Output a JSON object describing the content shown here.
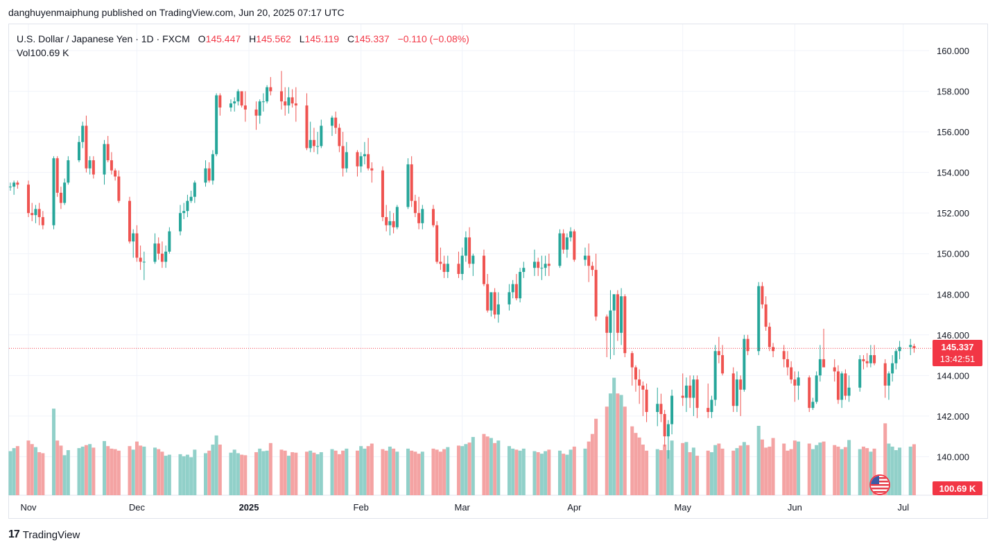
{
  "header": {
    "published_by": "danghuyenmaiphung published on TradingView.com, Jun 20, 2025 07:17 UTC"
  },
  "legend": {
    "symbol": "U.S. Dollar / Japanese Yen · 1D · FXCM",
    "open_label": "O",
    "open": "145.447",
    "high_label": "H",
    "high": "145.562",
    "low_label": "L",
    "low": "145.119",
    "close_label": "C",
    "close": "145.337",
    "change": "−0.110 (−0.08%)",
    "vol_label": "Vol",
    "vol": "100.69 K"
  },
  "price_tag": {
    "price": "145.337",
    "countdown": "13:42:51"
  },
  "vol_tag": "100.69 K",
  "footer": {
    "brand": "TradingView",
    "logo_mark": "17"
  },
  "colors": {
    "up": "#26a69a",
    "down": "#ef5350",
    "up_vol": "#91d0c9",
    "down_vol": "#f4a3a3",
    "accent": "#f23645"
  },
  "chart_data": {
    "type": "candlestick",
    "y_ticks": [
      "160.000",
      "158.000",
      "156.000",
      "154.000",
      "152.000",
      "150.000",
      "148.000",
      "146.000",
      "144.000",
      "142.000",
      "140.000"
    ],
    "ylim": [
      138.1,
      161.3
    ],
    "x_ticks": [
      {
        "label": "Nov",
        "day": 0
      },
      {
        "label": "Dec",
        "day": 30
      },
      {
        "label": "2025",
        "day": 61
      },
      {
        "label": "Feb",
        "day": 92
      },
      {
        "label": "Mar",
        "day": 120
      },
      {
        "label": "Apr",
        "day": 151
      },
      {
        "label": "May",
        "day": 181
      },
      {
        "label": "Jun",
        "day": 212
      },
      {
        "label": "Jul",
        "day": 242
      }
    ],
    "current_price": 145.337,
    "candles": [
      [
        -5,
        153.3,
        153.5,
        153.1,
        153.3,
        87
      ],
      [
        -4,
        153.3,
        153.6,
        152.9,
        153.5,
        93
      ],
      [
        -3,
        153.5,
        153.6,
        153.2,
        153.4,
        97
      ],
      [
        0,
        153.4,
        153.6,
        151.8,
        152.0,
        108
      ],
      [
        1,
        152.0,
        152.5,
        151.6,
        151.9,
        101
      ],
      [
        2,
        151.9,
        152.4,
        151.5,
        152.2,
        95
      ],
      [
        3,
        152.2,
        152.5,
        151.4,
        151.8,
        85
      ],
      [
        4,
        151.8,
        152.1,
        151.2,
        151.4,
        83
      ],
      [
        7,
        151.4,
        154.8,
        151.2,
        154.7,
        171
      ],
      [
        8,
        154.7,
        154.8,
        152.8,
        153.0,
        108
      ],
      [
        9,
        153.0,
        153.3,
        152.2,
        152.5,
        98
      ],
      [
        10,
        152.5,
        153.7,
        152.4,
        153.5,
        79
      ],
      [
        11,
        153.5,
        154.8,
        153.4,
        154.6,
        89
      ],
      [
        14,
        154.6,
        155.8,
        154.5,
        155.5,
        93
      ],
      [
        15,
        155.5,
        156.5,
        155.2,
        156.3,
        96
      ],
      [
        16,
        156.3,
        156.8,
        154.0,
        154.2,
        99
      ],
      [
        17,
        154.2,
        154.8,
        153.9,
        154.6,
        101
      ],
      [
        18,
        154.6,
        154.8,
        153.7,
        153.9,
        94
      ],
      [
        21,
        153.9,
        155.6,
        153.4,
        155.4,
        107
      ],
      [
        22,
        155.4,
        155.8,
        154.5,
        154.6,
        97
      ],
      [
        23,
        154.6,
        155.0,
        153.9,
        154.1,
        92
      ],
      [
        24,
        154.1,
        154.2,
        153.6,
        153.8,
        91
      ],
      [
        25,
        153.8,
        154.1,
        152.5,
        152.6,
        88
      ],
      [
        28,
        152.6,
        152.8,
        150.5,
        150.6,
        97
      ],
      [
        29,
        150.6,
        151.2,
        149.8,
        151.0,
        90
      ],
      [
        30,
        151.0,
        151.4,
        149.6,
        149.8,
        106
      ],
      [
        31,
        149.8,
        150.4,
        149.2,
        149.6,
        98
      ],
      [
        32,
        149.6,
        150.1,
        148.7,
        149.6,
        96
      ],
      [
        35,
        149.6,
        151.0,
        149.5,
        150.5,
        94
      ],
      [
        36,
        150.5,
        150.8,
        149.7,
        150.0,
        91
      ],
      [
        37,
        150.0,
        150.6,
        149.3,
        149.6,
        86
      ],
      [
        38,
        149.6,
        150.4,
        149.3,
        150.1,
        78
      ],
      [
        39,
        150.1,
        151.3,
        150.0,
        151.1,
        80
      ],
      [
        42,
        151.1,
        152.4,
        150.9,
        152.0,
        81
      ],
      [
        43,
        152.0,
        152.5,
        151.7,
        152.1,
        77
      ],
      [
        44,
        152.1,
        152.9,
        151.8,
        152.6,
        80
      ],
      [
        45,
        152.6,
        153.1,
        152.5,
        152.8,
        75
      ],
      [
        46,
        152.8,
        153.6,
        152.5,
        153.5,
        90
      ],
      [
        49,
        153.5,
        154.6,
        153.3,
        154.2,
        83
      ],
      [
        50,
        154.2,
        154.5,
        153.5,
        153.6,
        88
      ],
      [
        51,
        153.6,
        155.1,
        153.4,
        154.9,
        100
      ],
      [
        52,
        154.9,
        157.9,
        154.8,
        157.8,
        118
      ],
      [
        53,
        157.8,
        157.9,
        156.8,
        157.2,
        100
      ],
      [
        56,
        157.2,
        157.6,
        157.0,
        157.4,
        84
      ],
      [
        57,
        157.4,
        157.7,
        157.0,
        157.5,
        90
      ],
      [
        58,
        157.5,
        158.1,
        157.3,
        158.0,
        83
      ],
      [
        59,
        158.0,
        158.0,
        157.2,
        157.3,
        80
      ],
      [
        60,
        157.3,
        158.0,
        156.5,
        157.1,
        79
      ],
      [
        63,
        157.1,
        157.5,
        156.1,
        156.8,
        85
      ],
      [
        64,
        156.8,
        157.6,
        156.4,
        157.5,
        92
      ],
      [
        65,
        157.5,
        157.9,
        157.0,
        157.5,
        87
      ],
      [
        66,
        157.5,
        158.3,
        157.4,
        158.2,
        88
      ],
      [
        67,
        158.2,
        158.7,
        157.8,
        158.0,
        103
      ],
      [
        70,
        158.0,
        159.0,
        157.1,
        157.5,
        90
      ],
      [
        71,
        157.5,
        158.2,
        156.8,
        157.3,
        88
      ],
      [
        72,
        157.3,
        158.2,
        156.9,
        157.7,
        78
      ],
      [
        73,
        157.7,
        158.1,
        157.2,
        157.4,
        85
      ],
      [
        74,
        157.4,
        158.2,
        156.5,
        157.3,
        84
      ],
      [
        77,
        157.3,
        157.9,
        155.1,
        155.2,
        86
      ],
      [
        78,
        155.2,
        156.5,
        155.0,
        155.6,
        88
      ],
      [
        79,
        155.6,
        156.2,
        155.0,
        155.3,
        84
      ],
      [
        80,
        155.3,
        156.0,
        154.9,
        155.3,
        81
      ],
      [
        81,
        155.3,
        156.6,
        155.2,
        156.3,
        85
      ],
      [
        84,
        156.3,
        156.8,
        155.8,
        156.7,
        91
      ],
      [
        85,
        156.7,
        157.0,
        155.9,
        156.2,
        88
      ],
      [
        86,
        156.2,
        156.4,
        155.0,
        155.3,
        81
      ],
      [
        87,
        155.3,
        156.0,
        153.8,
        154.2,
        88
      ],
      [
        88,
        154.2,
        155.5,
        154.0,
        155.0,
        92
      ],
      [
        91,
        155.0,
        155.1,
        153.8,
        154.3,
        88
      ],
      [
        92,
        154.3,
        155.0,
        154.0,
        154.8,
        97
      ],
      [
        93,
        154.8,
        155.5,
        154.4,
        154.9,
        92
      ],
      [
        94,
        154.9,
        155.7,
        154.1,
        154.2,
        97
      ],
      [
        95,
        154.2,
        154.5,
        153.5,
        154.1,
        102
      ],
      [
        98,
        154.1,
        154.3,
        151.6,
        151.8,
        91
      ],
      [
        99,
        151.8,
        152.4,
        151.1,
        151.4,
        88
      ],
      [
        100,
        151.4,
        152.1,
        150.9,
        151.6,
        96
      ],
      [
        101,
        151.6,
        152.0,
        151.0,
        151.3,
        92
      ],
      [
        102,
        151.3,
        152.4,
        151.2,
        152.3,
        86
      ],
      [
        105,
        152.3,
        154.7,
        152.2,
        154.4,
        92
      ],
      [
        106,
        154.4,
        154.8,
        152.3,
        152.6,
        88
      ],
      [
        107,
        152.6,
        152.9,
        151.8,
        152.0,
        86
      ],
      [
        108,
        152.0,
        152.8,
        151.2,
        151.5,
        82
      ],
      [
        109,
        151.5,
        152.4,
        151.2,
        152.2,
        86
      ],
      [
        112,
        152.2,
        152.4,
        151.3,
        151.4,
        92
      ],
      [
        113,
        151.4,
        151.6,
        149.5,
        149.6,
        90
      ],
      [
        114,
        149.6,
        150.3,
        149.2,
        149.5,
        86
      ],
      [
        115,
        149.5,
        149.9,
        148.8,
        149.1,
        91
      ],
      [
        116,
        149.1,
        149.9,
        148.8,
        149.5,
        95
      ],
      [
        119,
        149.5,
        150.1,
        148.8,
        149.0,
        98
      ],
      [
        120,
        149.0,
        150.3,
        148.7,
        149.9,
        97
      ],
      [
        121,
        149.9,
        151.1,
        149.6,
        150.8,
        101
      ],
      [
        122,
        150.8,
        151.3,
        149.3,
        149.5,
        104
      ],
      [
        123,
        149.5,
        150.0,
        148.9,
        149.9,
        115
      ],
      [
        126,
        149.9,
        150.2,
        148.4,
        148.5,
        121
      ],
      [
        127,
        148.5,
        149.0,
        147.1,
        147.2,
        116
      ],
      [
        128,
        147.2,
        148.0,
        146.9,
        148.1,
        113
      ],
      [
        129,
        148.1,
        148.3,
        146.8,
        147.0,
        103
      ],
      [
        130,
        147.0,
        148.1,
        146.6,
        147.5,
        108
      ],
      [
        133,
        147.5,
        148.5,
        147.2,
        148.1,
        97
      ],
      [
        134,
        148.1,
        148.7,
        147.8,
        148.5,
        92
      ],
      [
        135,
        148.5,
        149.0,
        147.7,
        147.8,
        90
      ],
      [
        136,
        147.8,
        149.3,
        147.6,
        149.1,
        88
      ],
      [
        137,
        149.1,
        149.6,
        148.8,
        149.3,
        92
      ],
      [
        140,
        149.3,
        150.2,
        148.9,
        149.6,
        87
      ],
      [
        141,
        149.6,
        149.8,
        148.9,
        149.3,
        85
      ],
      [
        142,
        149.3,
        149.9,
        148.7,
        149.3,
        82
      ],
      [
        143,
        149.3,
        149.9,
        148.9,
        149.5,
        87
      ],
      [
        144,
        149.5,
        150.0,
        148.9,
        149.4,
        90
      ],
      [
        147,
        149.4,
        151.2,
        149.3,
        151.0,
        88
      ],
      [
        148,
        151.0,
        151.2,
        150.0,
        150.2,
        82
      ],
      [
        149,
        150.2,
        151.0,
        149.8,
        150.8,
        80
      ],
      [
        150,
        150.8,
        151.3,
        150.6,
        151.1,
        90
      ],
      [
        151,
        151.1,
        151.2,
        149.6,
        149.7,
        96
      ],
      [
        154,
        149.7,
        150.3,
        149.4,
        149.9,
        92
      ],
      [
        155,
        149.9,
        150.5,
        148.6,
        149.4,
        106
      ],
      [
        156,
        149.4,
        149.6,
        148.9,
        149.2,
        121
      ],
      [
        157,
        149.2,
        150.0,
        146.7,
        146.9,
        151
      ],
      [
        160,
        146.9,
        147.0,
        144.9,
        146.1,
        175
      ],
      [
        161,
        146.1,
        148.2,
        144.8,
        147.2,
        201
      ],
      [
        162,
        147.2,
        148.0,
        145.0,
        148.0,
        232
      ],
      [
        163,
        148.0,
        148.2,
        145.7,
        146.1,
        201
      ],
      [
        164,
        146.1,
        148.3,
        145.5,
        147.9,
        198
      ],
      [
        165,
        147.9,
        148.0,
        144.9,
        145.1,
        175
      ],
      [
        167,
        145.1,
        145.2,
        143.5,
        144.4,
        136
      ],
      [
        168,
        144.4,
        144.5,
        143.2,
        143.8,
        123
      ],
      [
        169,
        143.8,
        144.3,
        142.6,
        143.5,
        114
      ],
      [
        170,
        143.5,
        143.7,
        142.0,
        143.3,
        100
      ],
      [
        171,
        143.3,
        143.6,
        141.7,
        142.2,
        88
      ],
      [
        174,
        142.2,
        143.4,
        141.5,
        142.6,
        91
      ],
      [
        175,
        142.6,
        143.1,
        141.7,
        142.1,
        89
      ],
      [
        176,
        142.1,
        142.3,
        140.5,
        141.0,
        100
      ],
      [
        177,
        141.0,
        141.8,
        139.9,
        141.6,
        89
      ],
      [
        178,
        141.6,
        143.3,
        141.1,
        143.0,
        108
      ],
      [
        181,
        143.0,
        144.1,
        142.5,
        142.9,
        103
      ],
      [
        182,
        142.9,
        143.9,
        142.2,
        143.5,
        105
      ],
      [
        183,
        143.5,
        144.0,
        142.4,
        142.9,
        85
      ],
      [
        184,
        142.9,
        144.0,
        142.0,
        143.8,
        94
      ],
      [
        185,
        143.8,
        144.0,
        141.9,
        142.4,
        78
      ],
      [
        188,
        142.4,
        143.6,
        141.9,
        142.2,
        88
      ],
      [
        189,
        142.2,
        143.0,
        141.9,
        142.8,
        85
      ],
      [
        190,
        142.8,
        145.5,
        142.5,
        145.2,
        99
      ],
      [
        191,
        145.2,
        145.9,
        144.6,
        145.0,
        102
      ],
      [
        192,
        145.0,
        145.5,
        144.0,
        144.1,
        92
      ],
      [
        195,
        144.1,
        144.4,
        142.2,
        142.5,
        88
      ],
      [
        196,
        142.5,
        144.2,
        142.2,
        143.8,
        93
      ],
      [
        197,
        143.8,
        144.0,
        142.0,
        143.3,
        98
      ],
      [
        198,
        143.3,
        146.0,
        143.2,
        145.8,
        105
      ],
      [
        199,
        145.8,
        146.0,
        145.0,
        145.2,
        99
      ],
      [
        202,
        145.2,
        148.6,
        145.0,
        148.4,
        137
      ],
      [
        203,
        148.4,
        148.6,
        147.3,
        147.5,
        110
      ],
      [
        204,
        147.5,
        147.9,
        146.2,
        146.4,
        94
      ],
      [
        205,
        146.4,
        146.6,
        145.2,
        145.4,
        96
      ],
      [
        206,
        145.4,
        145.6,
        144.9,
        145.2,
        113
      ],
      [
        209,
        145.2,
        145.5,
        144.4,
        144.8,
        102
      ],
      [
        210,
        144.8,
        145.2,
        144.0,
        144.4,
        88
      ],
      [
        211,
        144.4,
        144.7,
        143.6,
        143.8,
        91
      ],
      [
        212,
        143.8,
        144.2,
        142.7,
        143.5,
        108
      ],
      [
        213,
        143.5,
        144.2,
        142.8,
        143.9,
        106
      ],
      [
        216,
        143.9,
        144.0,
        142.2,
        142.4,
        102
      ],
      [
        217,
        142.4,
        142.9,
        142.3,
        142.7,
        91
      ],
      [
        218,
        142.7,
        144.2,
        142.6,
        144.0,
        99
      ],
      [
        219,
        144.0,
        145.5,
        143.7,
        144.8,
        104
      ],
      [
        220,
        144.8,
        146.3,
        144.5,
        144.4,
        106
      ],
      [
        223,
        144.4,
        144.8,
        143.7,
        144.2,
        99
      ],
      [
        224,
        144.2,
        144.5,
        142.6,
        142.8,
        96
      ],
      [
        225,
        142.8,
        144.2,
        142.4,
        144.1,
        91
      ],
      [
        226,
        144.1,
        144.3,
        142.8,
        143.0,
        95
      ],
      [
        227,
        143.0,
        144.0,
        142.7,
        143.4,
        109
      ],
      [
        230,
        143.4,
        145.0,
        143.2,
        144.8,
        91
      ],
      [
        231,
        144.8,
        145.0,
        144.3,
        144.7,
        96
      ],
      [
        232,
        144.7,
        145.1,
        144.4,
        144.6,
        93
      ],
      [
        233,
        144.6,
        145.5,
        144.4,
        145.0,
        86
      ],
      [
        234,
        145.0,
        145.5,
        144.5,
        144.6,
        92
      ],
      [
        237,
        144.6,
        144.8,
        142.9,
        143.5,
        142
      ],
      [
        238,
        143.5,
        144.2,
        142.8,
        144.1,
        102
      ],
      [
        239,
        144.1,
        145.0,
        143.7,
        144.6,
        96
      ],
      [
        240,
        144.6,
        145.3,
        144.3,
        145.2,
        89
      ],
      [
        241,
        145.2,
        145.7,
        144.8,
        145.4,
        94
      ],
      [
        244,
        145.4,
        145.8,
        145.0,
        145.5,
        96
      ],
      [
        245,
        145.45,
        145.56,
        145.12,
        145.34,
        100.69
      ]
    ]
  }
}
